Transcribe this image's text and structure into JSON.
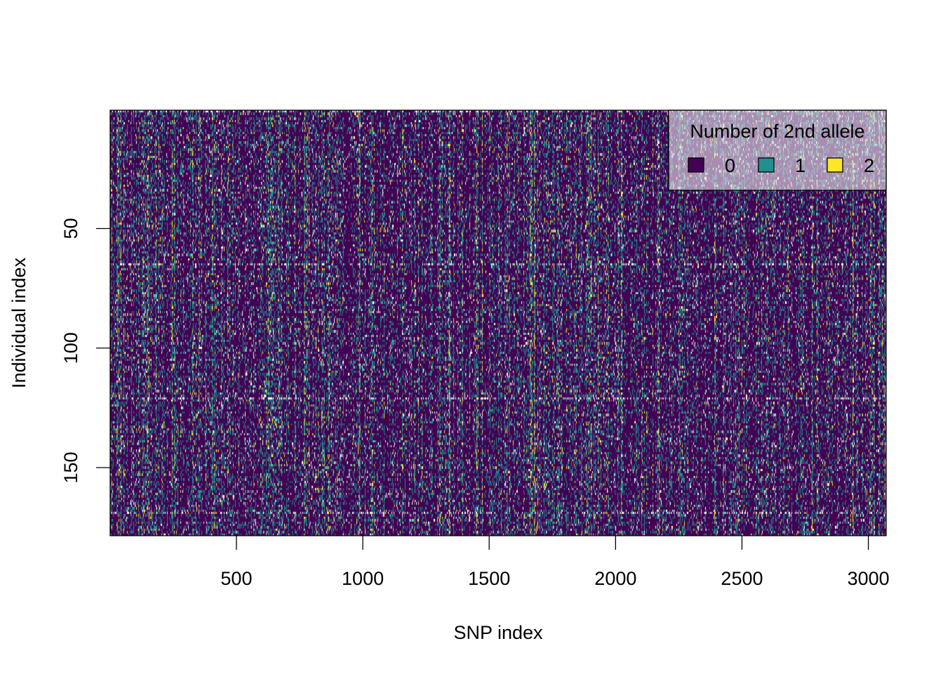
{
  "chart_data": {
    "type": "heatmap",
    "title": "",
    "xlabel": "SNP index",
    "ylabel": "Individual index",
    "xlim": [
      1,
      3070
    ],
    "ylim": [
      1,
      178
    ],
    "y_reversed": true,
    "x_ticks": [
      500,
      1000,
      1500,
      2000,
      2500,
      3000
    ],
    "y_ticks": [
      50,
      100,
      150
    ],
    "n_snps": 3070,
    "n_individuals": 178,
    "grid": false,
    "value_colors": {
      "0": "#440154",
      "1": "#21908C",
      "2": "#FDE725",
      "missing": "#ffffff"
    },
    "approx_value_proportions": {
      "0": 0.72,
      "1": 0.17,
      "2": 0.05,
      "missing": 0.06
    },
    "legend": {
      "title": "Number of 2nd allele",
      "position": "top-right",
      "entries": [
        {
          "label": "0",
          "color": "#440154"
        },
        {
          "label": "1",
          "color": "#21908C"
        },
        {
          "label": "2",
          "color": "#FDE725"
        }
      ]
    }
  }
}
